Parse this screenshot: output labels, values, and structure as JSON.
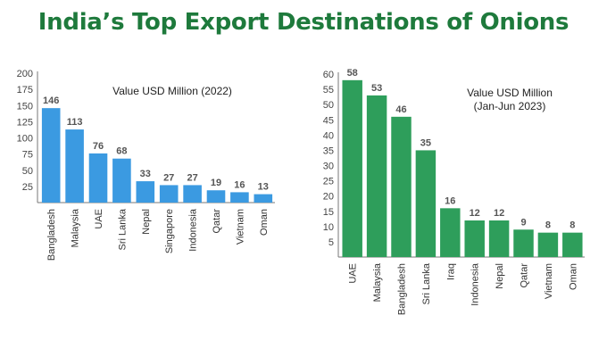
{
  "page": {
    "title": "India’s Top Export Destinations of Onions"
  },
  "chart_data": [
    {
      "type": "bar",
      "title": "Value USD Million (2022)",
      "categories": [
        "Bangladesh",
        "Malaysia",
        "UAE",
        "Sri Lanka",
        "Nepal",
        "Singapore",
        "Indonesia",
        "Qatar",
        "Vietnam",
        "Oman"
      ],
      "values": [
        146,
        113,
        76,
        68,
        33,
        27,
        27,
        19,
        16,
        13
      ],
      "ylim": [
        0,
        200
      ],
      "yticks": [
        25,
        50,
        75,
        100,
        125,
        150,
        175,
        200
      ],
      "color": "#3b9ae1",
      "grid": false,
      "xlabel": "",
      "ylabel": ""
    },
    {
      "type": "bar",
      "title": "Value USD Million",
      "subtitle": "(Jan-Jun 2023)",
      "categories": [
        "UAE",
        "Malaysia",
        "Bangladesh",
        "Sri Lanka",
        "Iraq",
        "Indonesia",
        "Nepal",
        "Qatar",
        "Vietnam",
        "Oman"
      ],
      "values": [
        58,
        53,
        46,
        35,
        16,
        12,
        12,
        9,
        8,
        8
      ],
      "ylim": [
        0,
        60
      ],
      "yticks": [
        5,
        10,
        15,
        20,
        25,
        30,
        35,
        40,
        45,
        50,
        55,
        60
      ],
      "color": "#2e9e5b",
      "grid": false,
      "xlabel": "",
      "ylabel": ""
    }
  ]
}
